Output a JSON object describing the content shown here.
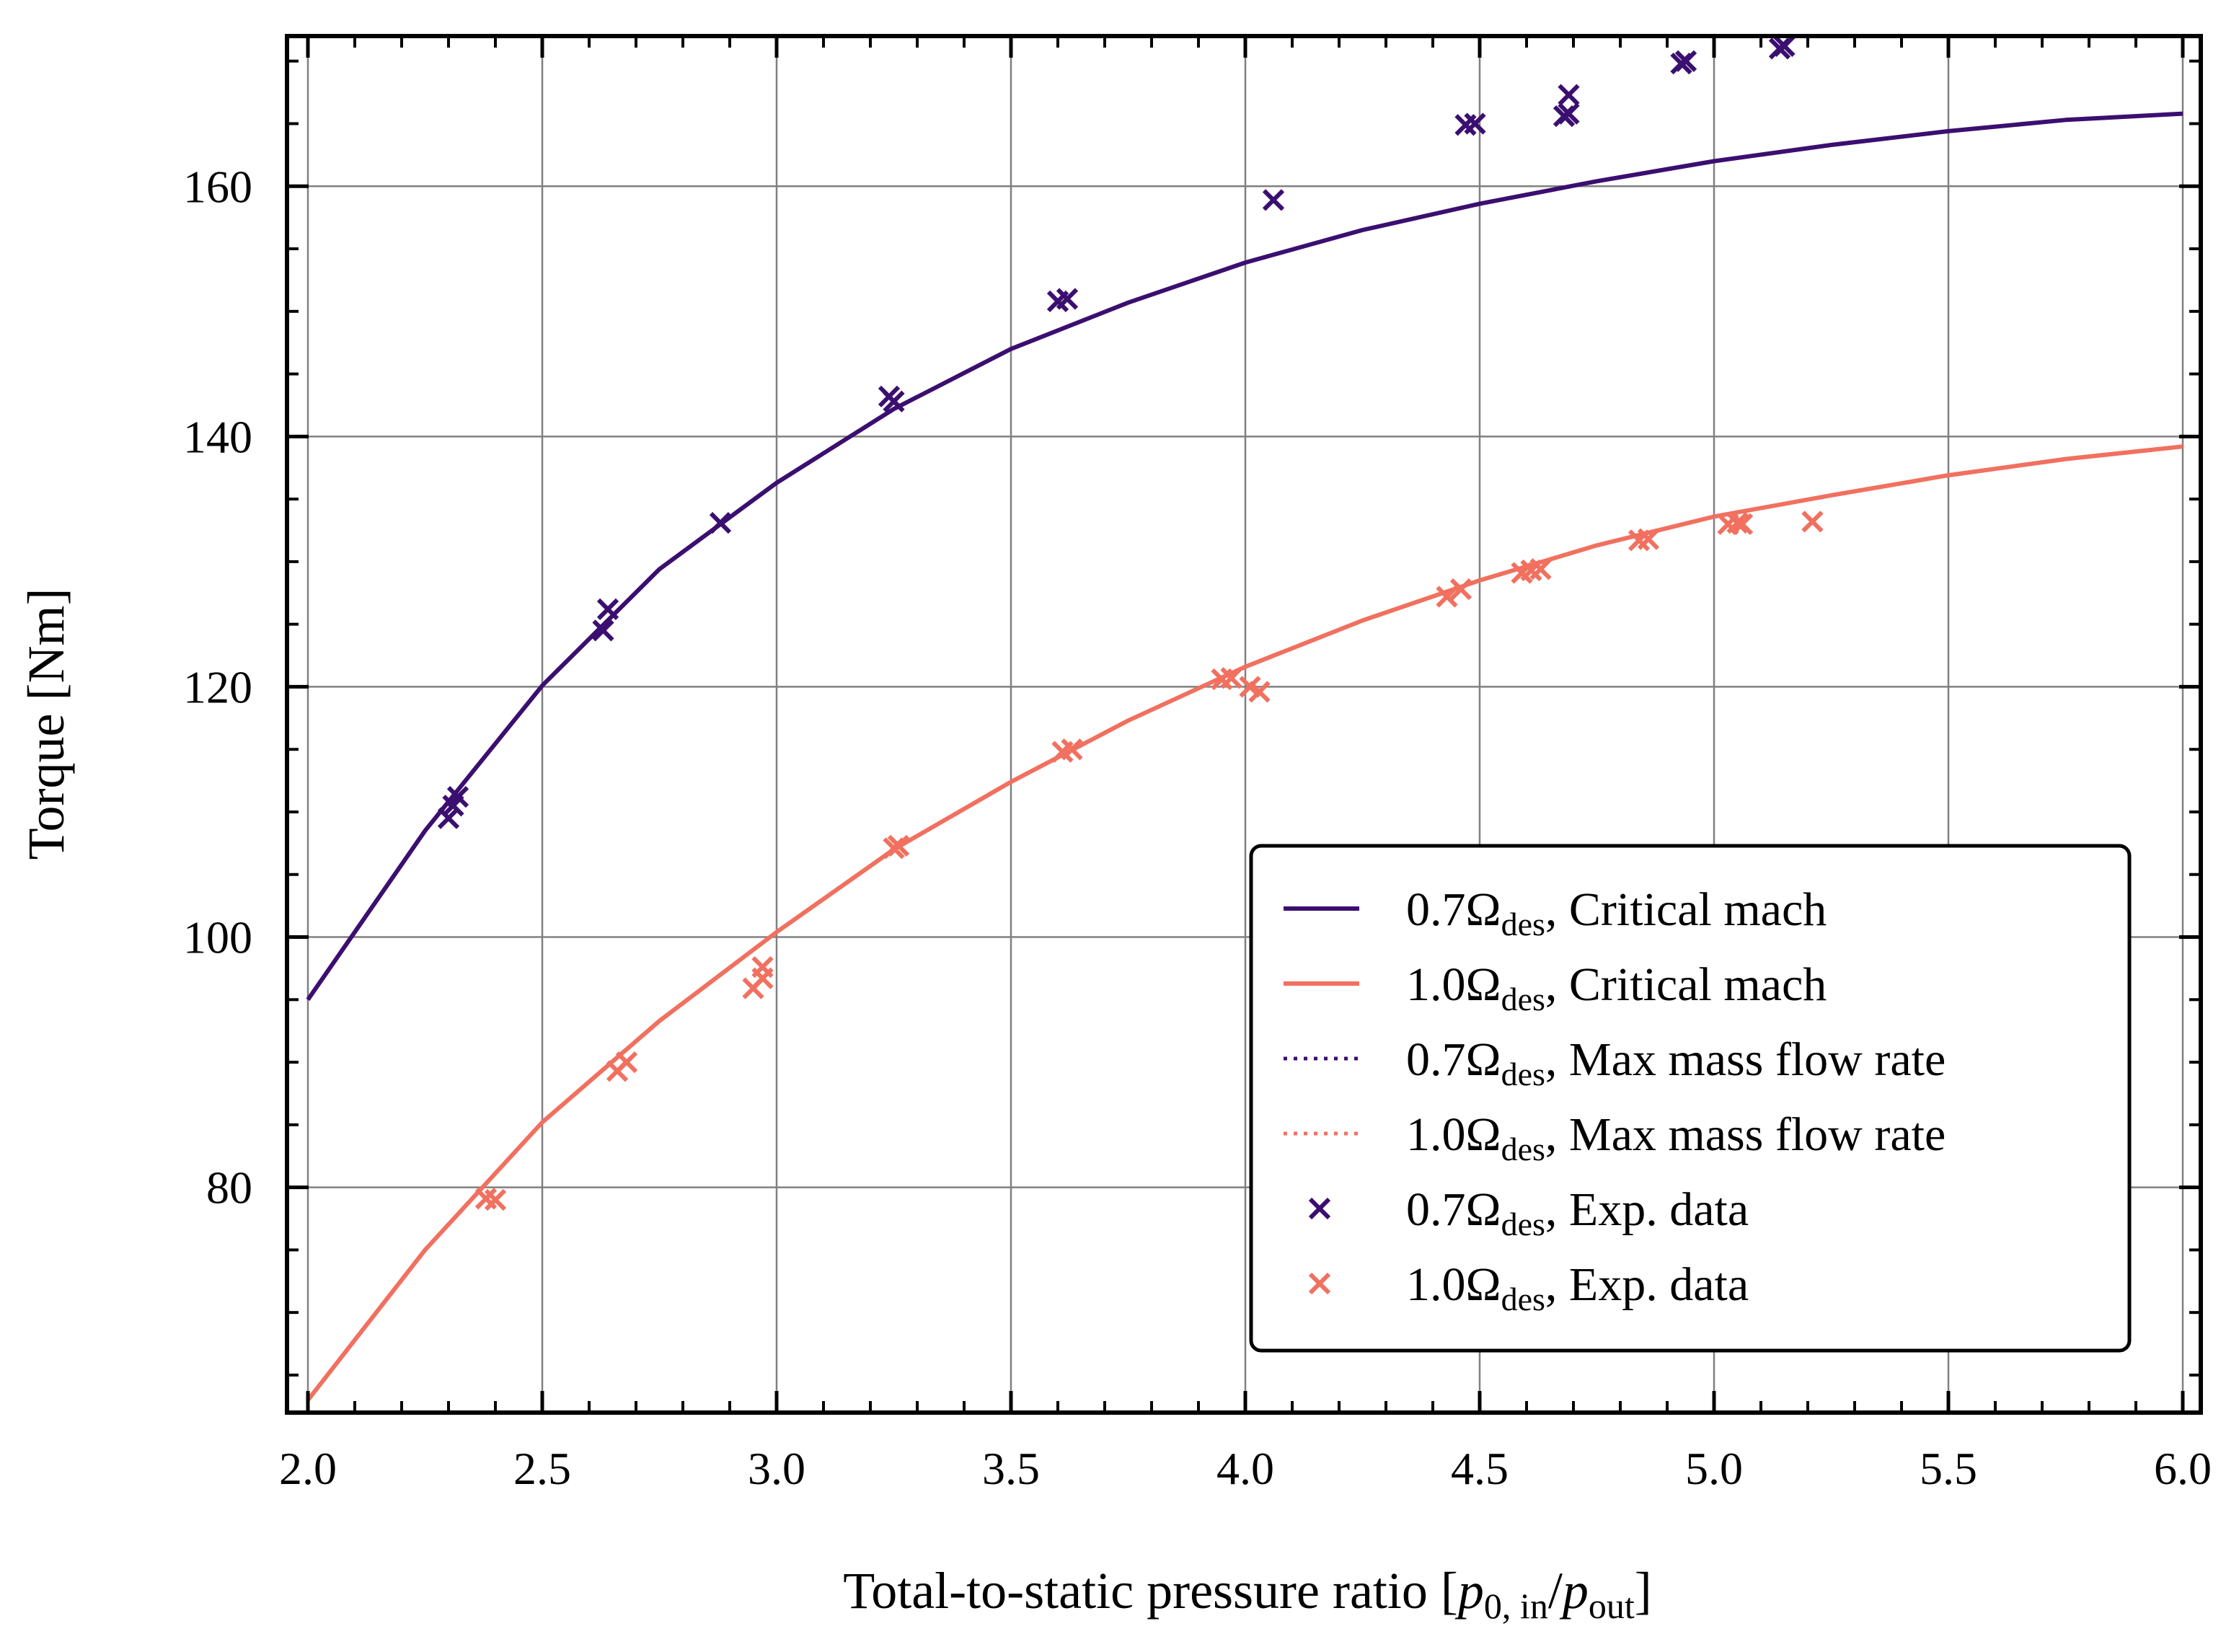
{
  "chart_data": {
    "type": "line",
    "xlabel": {
      "main": "Total-to-static pressure ratio [",
      "p1": "p",
      "p1_sub": "0, in",
      "slash": "/",
      "p2": "p",
      "p2_sub": "out",
      "close": "]"
    },
    "ylabel": "Torque [Nm]",
    "xlim": [
      2.0,
      6.0
    ],
    "ylim": [
      62,
      172
    ],
    "x_ticks": [
      2.0,
      2.5,
      3.0,
      3.5,
      4.0,
      4.5,
      5.0,
      5.5,
      6.0
    ],
    "x_tick_labels": [
      "2.0",
      "2.5",
      "3.0",
      "3.5",
      "4.0",
      "4.5",
      "5.0",
      "5.5",
      "6.0"
    ],
    "y_ticks": [
      80,
      100,
      120,
      140,
      160
    ],
    "y_tick_labels": [
      "80",
      "100",
      "120",
      "140",
      "160"
    ],
    "grid": true,
    "legend_position": "lower-right",
    "colors": {
      "speed_07": "#3b0f70",
      "speed_10": "#f1705f",
      "grid": "#808080"
    },
    "series": [
      {
        "name": "0.7Ωdes, Critical mach",
        "label_pre": "0.7Ω",
        "label_sub": "des",
        "label_post": ", Critical mach",
        "style": "solid",
        "color": "#3b0f70",
        "x": [
          2.0,
          2.25,
          2.5,
          2.75,
          3.0,
          3.25,
          3.5,
          3.75,
          4.0,
          4.25,
          4.5,
          4.75,
          5.0,
          5.25,
          5.5,
          5.75,
          6.0
        ],
        "y": [
          95.0,
          108.5,
          120.1,
          129.4,
          136.3,
          142.2,
          147.0,
          150.7,
          153.9,
          156.5,
          158.6,
          160.4,
          162.0,
          163.3,
          164.4,
          165.3,
          165.8
        ]
      },
      {
        "name": "1.0Ωdes, Critical mach",
        "label_pre": "1.0Ω",
        "label_sub": "des",
        "label_post": ", Critical mach",
        "style": "solid",
        "color": "#f1705f",
        "x": [
          2.0,
          2.25,
          2.5,
          2.75,
          3.0,
          3.25,
          3.5,
          3.75,
          4.0,
          4.25,
          4.5,
          4.75,
          5.0,
          5.25,
          5.5,
          5.75,
          6.0
        ],
        "y": [
          63.0,
          75.0,
          85.2,
          93.3,
          100.4,
          107.0,
          112.4,
          117.3,
          121.6,
          125.3,
          128.5,
          131.3,
          133.6,
          135.3,
          136.9,
          138.2,
          139.2
        ]
      },
      {
        "name": "0.7Ωdes, Max mass flow rate",
        "label_pre": "0.7Ω",
        "label_sub": "des",
        "label_post": ", Max mass flow rate",
        "style": "dotted",
        "color": "#3b0f70",
        "x": [
          2.0,
          2.25,
          2.5,
          2.75,
          3.0,
          3.25,
          3.5,
          3.75,
          4.0,
          4.25,
          4.5,
          4.75,
          5.0,
          5.25,
          5.5,
          5.75,
          6.0
        ],
        "y": [
          95.0,
          108.5,
          120.1,
          129.4,
          136.3,
          142.2,
          147.0,
          150.7,
          153.9,
          156.5,
          158.6,
          160.4,
          162.0,
          163.3,
          164.4,
          165.3,
          165.8
        ]
      },
      {
        "name": "1.0Ωdes, Max mass flow rate",
        "label_pre": "1.0Ω",
        "label_sub": "des",
        "label_post": ", Max mass flow rate",
        "style": "dotted",
        "color": "#f1705f",
        "x": [
          2.0,
          2.25,
          2.5,
          2.75,
          3.0,
          3.25,
          3.5,
          3.75,
          4.0,
          4.25,
          4.5,
          4.75,
          5.0,
          5.25,
          5.5,
          5.75,
          6.0
        ],
        "y": [
          63.0,
          75.0,
          85.2,
          93.3,
          100.4,
          107.0,
          112.4,
          117.3,
          121.6,
          125.3,
          128.5,
          131.3,
          133.6,
          135.3,
          136.9,
          138.2,
          139.2
        ]
      },
      {
        "name": "0.7Ωdes, Exp. data",
        "label_pre": "0.7Ω",
        "label_sub": "des",
        "label_post": ", Exp. data",
        "style": "marker-x",
        "color": "#3b0f70",
        "x": [
          2.3,
          2.31,
          2.32,
          2.63,
          2.64,
          2.88,
          3.24,
          3.25,
          3.6,
          3.62,
          4.06,
          4.47,
          4.49,
          4.68,
          4.69,
          4.69,
          4.93,
          4.94,
          5.14,
          5.15
        ],
        "y": [
          109.5,
          110.5,
          111.2,
          124.5,
          126.2,
          133.1,
          143.2,
          142.8,
          150.8,
          151.0,
          158.9,
          164.9,
          165.0,
          165.6,
          165.8,
          167.3,
          169.8,
          170.0,
          171.0,
          171.2
        ]
      },
      {
        "name": "1.0Ωdes, Exp. data",
        "label_pre": "1.0Ω",
        "label_sub": "des",
        "label_post": ", Exp. data",
        "style": "marker-x",
        "color": "#f1705f",
        "x": [
          2.38,
          2.4,
          2.66,
          2.68,
          2.95,
          2.97,
          2.97,
          3.25,
          3.26,
          3.61,
          3.63,
          3.95,
          3.97,
          4.01,
          4.03,
          4.43,
          4.46,
          4.59,
          4.61,
          4.63,
          4.84,
          4.86,
          5.03,
          5.05,
          5.06,
          5.21
        ],
        "y": [
          79.1,
          79.0,
          89.3,
          90.0,
          95.9,
          96.7,
          97.6,
          107.1,
          107.3,
          114.8,
          115.0,
          120.6,
          120.7,
          120.0,
          119.6,
          127.2,
          127.8,
          129.1,
          129.3,
          129.4,
          131.7,
          131.8,
          133.0,
          133.1,
          133.0,
          133.2
        ]
      }
    ]
  }
}
